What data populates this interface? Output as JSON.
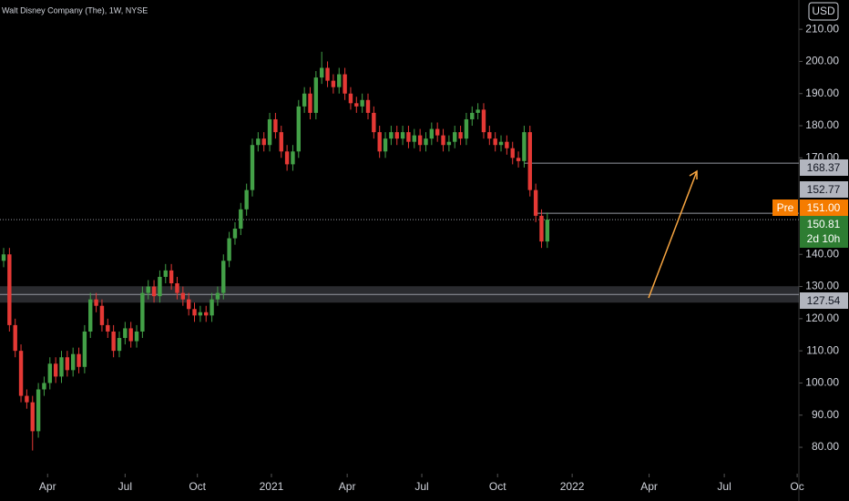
{
  "chart_data": {
    "type": "candlestick",
    "title": "Walt Disney Company (The), 1W, NYSE",
    "currency": "USD",
    "up_color": "#43a047",
    "down_color": "#e53935",
    "open": [
      138,
      140,
      118,
      110,
      96,
      94,
      85,
      98,
      100,
      106,
      102,
      108,
      104,
      109,
      105,
      116,
      126,
      124,
      118,
      116,
      110,
      114,
      117,
      113,
      116,
      128,
      130,
      127,
      133,
      135,
      131,
      128,
      126,
      123,
      121,
      122,
      121,
      126,
      128,
      138,
      145,
      148,
      154,
      160,
      174,
      176,
      174,
      182,
      178,
      172,
      168,
      172,
      186,
      190,
      184,
      195,
      198,
      194,
      192,
      196,
      190,
      187,
      186,
      188,
      184,
      178,
      172,
      176,
      178,
      176,
      178,
      175,
      177,
      174,
      176,
      179,
      177,
      174,
      175,
      178,
      176,
      182,
      184,
      185,
      178,
      176,
      174,
      175,
      173,
      170,
      169,
      178,
      160,
      152,
      144
    ],
    "high": [
      142,
      142,
      120,
      112,
      98,
      96,
      100,
      102,
      108,
      108,
      110,
      110,
      111,
      111,
      118,
      128,
      128,
      126,
      120,
      118,
      116,
      119,
      119,
      118,
      130,
      132,
      132,
      135,
      137,
      137,
      133,
      130,
      128,
      125,
      124,
      124,
      128,
      130,
      140,
      147,
      150,
      156,
      162,
      176,
      178,
      178,
      184,
      184,
      180,
      174,
      174,
      188,
      192,
      192,
      197,
      203,
      200,
      196,
      198,
      198,
      192,
      189,
      190,
      190,
      186,
      180,
      178,
      180,
      180,
      180,
      180,
      179,
      179,
      178,
      181,
      181,
      179,
      177,
      180,
      180,
      184,
      186,
      187,
      187,
      180,
      178,
      177,
      177,
      175,
      172,
      180,
      180,
      162,
      154,
      153
    ],
    "low": [
      136,
      116,
      108,
      94,
      92,
      79,
      83,
      96,
      98,
      100,
      100,
      102,
      102,
      103,
      103,
      114,
      122,
      116,
      114,
      108,
      108,
      112,
      111,
      111,
      114,
      126,
      125,
      125,
      131,
      129,
      126,
      124,
      121,
      119,
      119,
      119,
      119,
      124,
      126,
      136,
      143,
      146,
      152,
      158,
      172,
      172,
      172,
      176,
      170,
      166,
      166,
      170,
      184,
      182,
      182,
      193,
      192,
      190,
      190,
      188,
      185,
      184,
      184,
      182,
      176,
      170,
      170,
      174,
      174,
      174,
      173,
      173,
      172,
      172,
      174,
      175,
      172,
      172,
      173,
      174,
      174,
      180,
      182,
      176,
      174,
      172,
      172,
      171,
      168,
      167,
      167,
      158,
      150,
      142,
      142
    ],
    "close": [
      140,
      118,
      110,
      96,
      94,
      85,
      98,
      100,
      106,
      102,
      108,
      104,
      109,
      105,
      116,
      126,
      124,
      118,
      116,
      110,
      114,
      117,
      113,
      116,
      128,
      130,
      127,
      133,
      135,
      131,
      128,
      126,
      123,
      121,
      122,
      121,
      126,
      128,
      138,
      145,
      148,
      154,
      160,
      174,
      176,
      174,
      182,
      178,
      172,
      168,
      172,
      186,
      190,
      184,
      195,
      198,
      194,
      192,
      196,
      190,
      187,
      186,
      188,
      184,
      178,
      172,
      176,
      178,
      176,
      178,
      175,
      177,
      174,
      176,
      179,
      177,
      174,
      175,
      178,
      176,
      182,
      184,
      185,
      178,
      176,
      174,
      175,
      173,
      170,
      169,
      178,
      160,
      152,
      144,
      150.81
    ],
    "xlim": [
      -0.63,
      137.5
    ],
    "xticks": [
      {
        "value": 7.6,
        "label": "Apr"
      },
      {
        "value": 21,
        "label": "Jul"
      },
      {
        "value": 33.5,
        "label": "Oct"
      },
      {
        "value": 46.3,
        "label": "2021"
      },
      {
        "value": 59.4,
        "label": "Apr"
      },
      {
        "value": 72.3,
        "label": "Jul"
      },
      {
        "value": 85.4,
        "label": "Oct"
      },
      {
        "value": 98.3,
        "label": "2022"
      },
      {
        "value": 111.6,
        "label": "Apr"
      },
      {
        "value": 124.6,
        "label": "Jul"
      },
      {
        "value": 137.2,
        "label": "Oc"
      }
    ],
    "ylim": [
      71.8,
      219.1
    ],
    "yticks": [
      {
        "value": 80,
        "label": "80.00"
      },
      {
        "value": 90,
        "label": "90.00"
      },
      {
        "value": 100,
        "label": "100.00"
      },
      {
        "value": 110,
        "label": "110.00"
      },
      {
        "value": 120,
        "label": "120.00"
      },
      {
        "value": 130,
        "label": "130.00"
      },
      {
        "value": 140,
        "label": "140.00"
      },
      {
        "value": 170,
        "label": "170.00"
      },
      {
        "value": 180,
        "label": "180.00"
      },
      {
        "value": 190,
        "label": "190.00"
      },
      {
        "value": 200,
        "label": "200.00"
      },
      {
        "value": 210,
        "label": "210.00"
      }
    ],
    "levels": [
      {
        "value": 168.37,
        "start": 90
      },
      {
        "value": 152.77,
        "start": 92
      },
      {
        "value": 127.54,
        "start": -0.63
      }
    ],
    "premarket": {
      "tag": "Pre",
      "value": 151,
      "label": "151.00"
    },
    "last": {
      "value": 150.81,
      "countdown": "2d 10h"
    }
  }
}
